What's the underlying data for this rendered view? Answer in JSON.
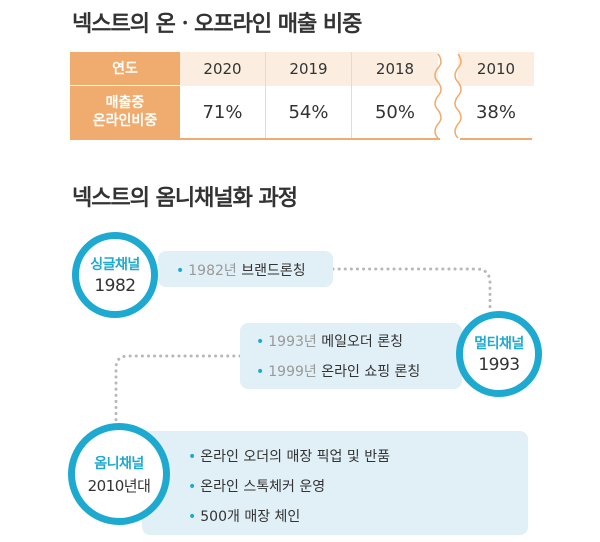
{
  "section1": {
    "title": "넥스트의 온ㆍ오프라인 매출 비중",
    "table": {
      "header_label": "연도",
      "row_label_line1": "매출중",
      "row_label_line2": "온라인비중",
      "years": [
        "2020",
        "2019",
        "2018",
        "2010"
      ],
      "shares": [
        "71%",
        "54%",
        "50%",
        "38%"
      ]
    }
  },
  "section2": {
    "title": "넥스트의 옴니채널화 과정",
    "stages": [
      {
        "name": "싱글채널",
        "year": "1982",
        "items": [
          {
            "year": "1982년",
            "text": "브랜드론칭"
          }
        ]
      },
      {
        "name": "멀티채널",
        "year": "1993",
        "items": [
          {
            "year": "1993년",
            "text": "메일오더 론칭"
          },
          {
            "year": "1999년",
            "text": "온라인 쇼핑 론칭"
          }
        ]
      },
      {
        "name": "옴니채널",
        "year": "2010년대",
        "items": [
          {
            "text": "온라인 오더의 매장 픽업 및 반품"
          },
          {
            "text": "온라인 스톡체커 운영"
          },
          {
            "text": "500개 매장 체인"
          }
        ]
      }
    ],
    "accent_color": "#1ea9d0",
    "bar_color": "#e1eff6"
  }
}
